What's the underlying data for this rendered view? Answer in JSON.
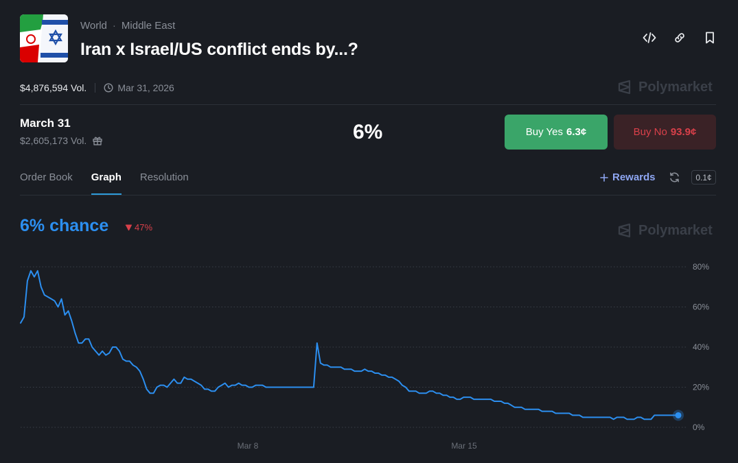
{
  "header": {
    "category": "World",
    "subcategory": "Middle East",
    "title": "Iran x Israel/US conflict ends by...?",
    "volume": "$4,876,594 Vol.",
    "end_date": "Mar 31, 2026",
    "brand": "Polymarket",
    "thumbnail_icon": "iran-israel-flags-icon"
  },
  "outcome": {
    "label": "March 31",
    "volume": "$2,605,173 Vol.",
    "probability": "6%",
    "buy_yes_label": "Buy Yes",
    "buy_yes_price": "6.3¢",
    "buy_no_label": "Buy No",
    "buy_no_price": "93.9¢"
  },
  "tabs": [
    {
      "label": "Order Book",
      "active": false
    },
    {
      "label": "Graph",
      "active": true
    },
    {
      "label": "Resolution",
      "active": false
    }
  ],
  "rewards_label": "Rewards",
  "tick_size": "0.1¢",
  "graph": {
    "chance_label": "6% chance",
    "change_label": "47%",
    "brand": "Polymarket"
  },
  "colors": {
    "line": "#2c8ff0",
    "yes": "#3aa569",
    "no": "#d9404a",
    "background": "#1a1d23"
  },
  "chart_data": {
    "type": "line",
    "title": "6% chance",
    "series": [
      {
        "name": "March 31",
        "values": [
          52,
          55,
          73,
          78,
          75,
          78,
          70,
          66,
          65,
          64,
          63,
          60,
          64,
          56,
          58,
          53,
          47,
          42,
          42,
          44,
          44,
          40,
          38,
          36,
          38,
          36,
          37,
          40,
          40,
          38,
          34,
          33,
          33,
          31,
          30,
          28,
          24,
          19,
          17,
          17,
          20,
          21,
          21,
          20,
          22,
          24,
          22,
          22,
          25,
          24,
          24,
          23,
          22,
          21,
          19,
          19,
          18,
          18,
          20,
          21,
          22,
          20,
          21,
          21,
          22,
          21,
          21,
          20,
          20,
          21,
          21,
          21,
          20,
          20,
          20,
          20,
          20,
          20,
          20,
          20,
          20,
          20,
          20,
          20,
          20,
          20,
          20,
          42,
          32,
          31,
          31,
          30,
          30,
          30,
          30,
          29,
          29,
          29,
          28,
          28,
          28,
          29,
          28,
          28,
          27,
          27,
          26,
          26,
          25,
          25,
          24,
          23,
          21,
          20,
          18,
          18,
          18,
          17,
          17,
          17,
          18,
          18,
          17,
          17,
          16,
          16,
          15,
          15,
          14,
          14,
          15,
          15,
          15,
          14,
          14,
          14,
          14,
          14,
          14,
          13,
          13,
          13,
          12,
          12,
          11,
          10,
          10,
          10,
          9,
          9,
          9,
          9,
          9,
          8,
          8,
          8,
          8,
          7,
          7,
          7,
          7,
          7,
          6,
          6,
          6,
          5,
          5,
          5,
          5,
          5,
          5,
          5,
          5,
          5,
          4,
          5,
          5,
          5,
          4,
          4,
          4,
          5,
          5,
          4,
          4,
          4,
          6,
          6,
          6,
          6,
          6,
          6,
          6,
          6
        ]
      }
    ],
    "x_ticks": [
      "Mar 8",
      "Mar 15"
    ],
    "y_ticks": [
      "80%",
      "60%",
      "40%",
      "20%",
      "0%"
    ],
    "ylim": [
      0,
      80
    ],
    "grid": true,
    "current_value": 6
  }
}
